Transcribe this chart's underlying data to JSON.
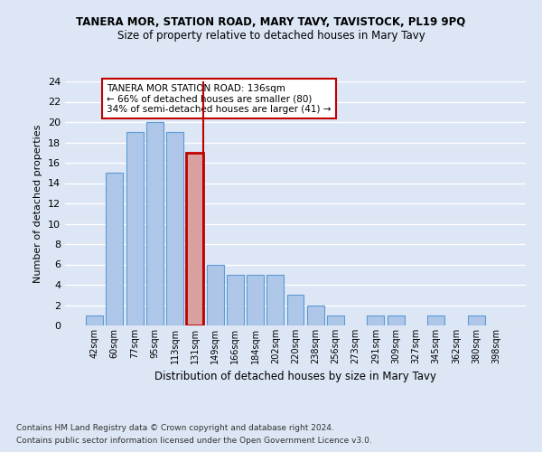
{
  "title": "TANERA MOR, STATION ROAD, MARY TAVY, TAVISTOCK, PL19 9PQ",
  "subtitle": "Size of property relative to detached houses in Mary Tavy",
  "xlabel": "Distribution of detached houses by size in Mary Tavy",
  "ylabel": "Number of detached properties",
  "categories": [
    "42sqm",
    "60sqm",
    "77sqm",
    "95sqm",
    "113sqm",
    "131sqm",
    "149sqm",
    "166sqm",
    "184sqm",
    "202sqm",
    "220sqm",
    "238sqm",
    "256sqm",
    "273sqm",
    "291sqm",
    "309sqm",
    "327sqm",
    "345sqm",
    "362sqm",
    "380sqm",
    "398sqm"
  ],
  "values": [
    1,
    15,
    19,
    20,
    19,
    17,
    6,
    5,
    5,
    5,
    3,
    2,
    1,
    0,
    1,
    1,
    0,
    1,
    0,
    1,
    0
  ],
  "bar_color": "#aec6e8",
  "bar_edge_color": "#5b9bd5",
  "highlight_bar_index": 5,
  "highlight_color": "#c00000",
  "vline_x": 5,
  "annotation_title": "TANERA MOR STATION ROAD: 136sqm",
  "annotation_line1": "← 66% of detached houses are smaller (80)",
  "annotation_line2": "34% of semi-detached houses are larger (41) →",
  "annotation_box_color": "#c00000",
  "ylim": [
    0,
    24
  ],
  "yticks": [
    0,
    2,
    4,
    6,
    8,
    10,
    12,
    14,
    16,
    18,
    20,
    22,
    24
  ],
  "footnote1": "Contains HM Land Registry data © Crown copyright and database right 2024.",
  "footnote2": "Contains public sector information licensed under the Open Government Licence v3.0.",
  "background_color": "#dce6f5",
  "plot_bg_color": "#dce6f5",
  "grid_color": "#ffffff"
}
